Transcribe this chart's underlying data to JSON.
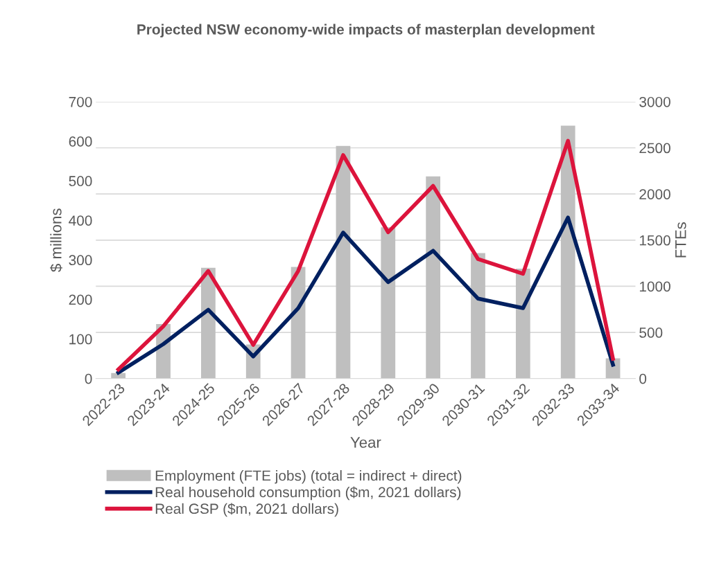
{
  "chart_data": {
    "type": "bar",
    "title": "Projected NSW economy-wide impacts of masterplan development",
    "xlabel": "Year",
    "ylabel": "$ millions",
    "y2label": "FTEs",
    "categories": [
      "2022-23",
      "2023-24",
      "2024-25",
      "2025-26",
      "2026-27",
      "2027-28",
      "2028-29",
      "2029-30",
      "2030-31",
      "2031-32",
      "2032-33",
      "2033-34"
    ],
    "series": [
      {
        "name": "Employment (FTE jobs) (total = indirect + direct)",
        "axis": "y2",
        "color": "#bfbfbf",
        "values": [
          60,
          590,
          1200,
          370,
          1210,
          2520,
          1640,
          2190,
          1360,
          1190,
          2740,
          220
        ]
      },
      {
        "name": "Real household consumption ($m, 2021 dollars)",
        "type": "line",
        "color": "#002060",
        "values": [
          15,
          87,
          174,
          56,
          178,
          369,
          244,
          323,
          202,
          178,
          407,
          35
        ]
      },
      {
        "name": "Real GSP ($m, 2021 dollars)",
        "type": "line",
        "color": "#dc143c",
        "values": [
          23,
          132,
          272,
          85,
          272,
          565,
          370,
          487,
          302,
          265,
          601,
          50
        ]
      }
    ],
    "ylim": [
      0,
      700
    ],
    "yticks": [
      0,
      100,
      200,
      300,
      400,
      500,
      600,
      700
    ],
    "y2lim": [
      0,
      3000
    ],
    "y2ticks": [
      0,
      500,
      1000,
      1500,
      2000,
      2500,
      3000
    ],
    "grid": "y",
    "legend": "bottom",
    "marker": "none",
    "line_style": "solid"
  }
}
